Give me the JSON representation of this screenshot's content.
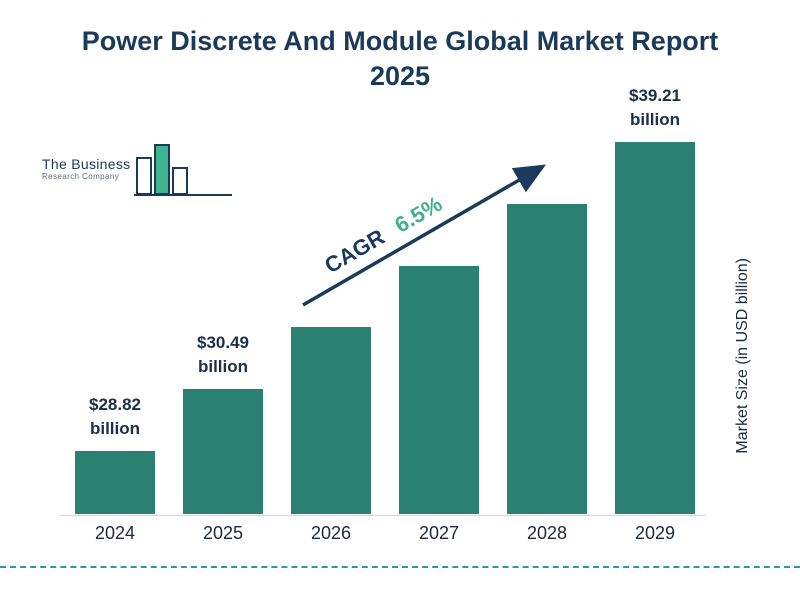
{
  "title": "Power Discrete And Module Global Market Report 2025",
  "logo": {
    "line1": "The Business",
    "line2": "Research Company"
  },
  "chart_data": {
    "type": "bar",
    "title": "Power Discrete And Module Global Market Report 2025",
    "categories": [
      "2024",
      "2025",
      "2026",
      "2027",
      "2028",
      "2029"
    ],
    "values": [
      28.82,
      30.49,
      32.5,
      34.6,
      36.8,
      39.21
    ],
    "value_labels": [
      "$28.82 billion",
      "$30.49 billion",
      "",
      "",
      "",
      "$39.21 billion"
    ],
    "ylabel": "Market Size (in USD billion)",
    "xlabel": "",
    "annotation": {
      "label": "CAGR",
      "value": "6.5%"
    },
    "legend": "none",
    "grid": false,
    "bar_color": "#2A8172",
    "accent_green": "#42B08A",
    "title_color": "#1B3A5A",
    "axis_text_color": "#1D2B3A",
    "dashed_line_color": "#2A9D8F"
  }
}
